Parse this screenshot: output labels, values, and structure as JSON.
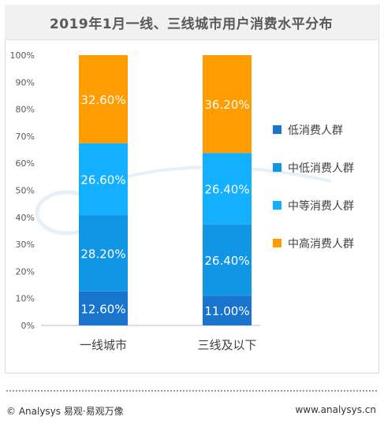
{
  "chart_data": {
    "type": "bar",
    "stacked": true,
    "title": "2019年1月一线、三线城市用户消费水平分布",
    "categories": [
      "一线城市",
      "三线及以下"
    ],
    "series": [
      {
        "name": "低消费人群",
        "values": [
          12.6,
          11.0
        ],
        "labels": [
          "12.60%",
          "11.00%"
        ],
        "color": "#1874cd"
      },
      {
        "name": "中低消费人群",
        "values": [
          28.2,
          26.4
        ],
        "labels": [
          "28.20%",
          "26.40%"
        ],
        "color": "#1196e6"
      },
      {
        "name": "中等消费人群",
        "values": [
          26.6,
          26.4
        ],
        "labels": [
          "26.60%",
          "26.40%"
        ],
        "color": "#13b0ff"
      },
      {
        "name": "中高消费人群",
        "values": [
          32.6,
          36.2
        ],
        "labels": [
          "32.60%",
          "36.20%"
        ],
        "color": "#ff9c00"
      }
    ],
    "ylim": [
      0,
      100
    ],
    "yticks": [
      "0%",
      "10%",
      "20%",
      "30%",
      "40%",
      "50%",
      "60%",
      "70%",
      "80%",
      "90%",
      "100%"
    ],
    "legend_position": "right",
    "grid": false
  },
  "footer": {
    "left": "© Analysys 易观·易观万像",
    "right": "www.analysys.cn"
  }
}
